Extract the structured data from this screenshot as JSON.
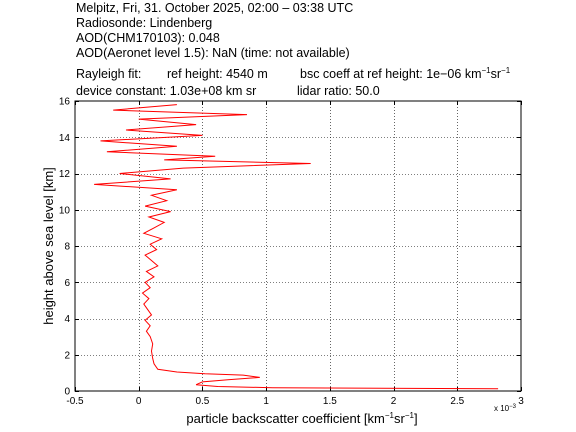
{
  "header": {
    "line1": "Melpitz, Fri, 31. October 2025, 02:00 – 03:38 UTC",
    "line2": "Radiosonde: Lindenberg",
    "line3": "AOD(CHM170103): 0.048",
    "line4": "AOD(Aeronet level 1.5): NaN   (time: not available)",
    "rayleigh_label": "Rayleigh fit:",
    "ref_height": "ref height: 4540 m",
    "bsc_prefix": "bsc coeff at ref height: 1e−06 km",
    "bsc_exp1": "−1",
    "bsc_mid": "sr",
    "bsc_exp2": "−1",
    "device_constant": "device constant: 1.03e+08 km sr",
    "lidar_ratio": "lidar ratio: 50.0"
  },
  "axis": {
    "xlabel_prefix": "particle backscatter coefficient [km",
    "xlabel_exp1": "−1",
    "xlabel_mid": "sr",
    "xlabel_exp2": "−1",
    "xlabel_suffix": "]",
    "ylabel": "height above sea level [km]",
    "x_scale_base": "x 10",
    "x_scale_exp": "−3"
  },
  "colors": {
    "series": "#ff0000",
    "axes": "#000000",
    "grid": "#000000",
    "background": "#ffffff"
  },
  "chart_data": {
    "type": "line",
    "xlim": [
      -0.5,
      3.0
    ],
    "ylim": [
      0,
      16
    ],
    "x_scale": "1e-3",
    "xticks": [
      -0.5,
      0,
      0.5,
      1,
      1.5,
      2,
      2.5,
      3
    ],
    "xtick_labels": [
      "-0.5",
      "0",
      "0.5",
      "1",
      "1.5",
      "2",
      "2.5",
      "3"
    ],
    "yticks": [
      0,
      2,
      4,
      6,
      8,
      10,
      12,
      14,
      16
    ],
    "ytick_labels": [
      "0",
      "2",
      "4",
      "6",
      "8",
      "10",
      "12",
      "14",
      "16"
    ],
    "grid": true,
    "series": [
      {
        "points": [
          [
            2.82,
            0.12
          ],
          [
            1.05,
            0.18
          ],
          [
            0.62,
            0.25
          ],
          [
            0.45,
            0.35
          ],
          [
            0.5,
            0.5
          ],
          [
            0.7,
            0.62
          ],
          [
            0.95,
            0.75
          ],
          [
            0.82,
            0.88
          ],
          [
            0.52,
            0.95
          ],
          [
            0.3,
            1.05
          ],
          [
            0.15,
            1.2
          ],
          [
            0.12,
            1.5
          ],
          [
            0.11,
            1.8
          ],
          [
            0.1,
            2.2
          ],
          [
            0.11,
            2.6
          ],
          [
            0.09,
            3.0
          ],
          [
            0.06,
            3.3
          ],
          [
            0.09,
            3.6
          ],
          [
            0.05,
            3.9
          ],
          [
            0.1,
            4.2
          ],
          [
            0.07,
            4.5
          ],
          [
            0.04,
            4.8
          ],
          [
            0.08,
            5.1
          ],
          [
            0.03,
            5.4
          ],
          [
            0.09,
            5.7
          ],
          [
            0.05,
            6.0
          ],
          [
            0.12,
            6.3
          ],
          [
            0.06,
            6.6
          ],
          [
            0.15,
            6.9
          ],
          [
            0.1,
            7.2
          ],
          [
            0.05,
            7.5
          ],
          [
            0.14,
            7.8
          ],
          [
            0.09,
            8.1
          ],
          [
            0.18,
            8.4
          ],
          [
            0.04,
            8.7
          ],
          [
            0.12,
            9.0
          ],
          [
            0.2,
            9.3
          ],
          [
            0.08,
            9.6
          ],
          [
            0.25,
            9.9
          ],
          [
            0.05,
            10.2
          ],
          [
            0.22,
            10.5
          ],
          [
            0.1,
            10.8
          ],
          [
            0.3,
            11.1
          ],
          [
            -0.35,
            11.4
          ],
          [
            0.25,
            11.7
          ],
          [
            -0.15,
            12.0
          ],
          [
            0.35,
            12.3
          ],
          [
            1.35,
            12.55
          ],
          [
            0.2,
            12.75
          ],
          [
            0.6,
            12.95
          ],
          [
            -0.25,
            13.2
          ],
          [
            0.3,
            13.5
          ],
          [
            -0.3,
            13.8
          ],
          [
            0.5,
            14.1
          ],
          [
            -0.1,
            14.4
          ],
          [
            0.45,
            14.7
          ],
          [
            0.0,
            15.0
          ],
          [
            0.85,
            15.25
          ],
          [
            -0.2,
            15.5
          ],
          [
            0.3,
            15.8
          ]
        ]
      }
    ]
  }
}
